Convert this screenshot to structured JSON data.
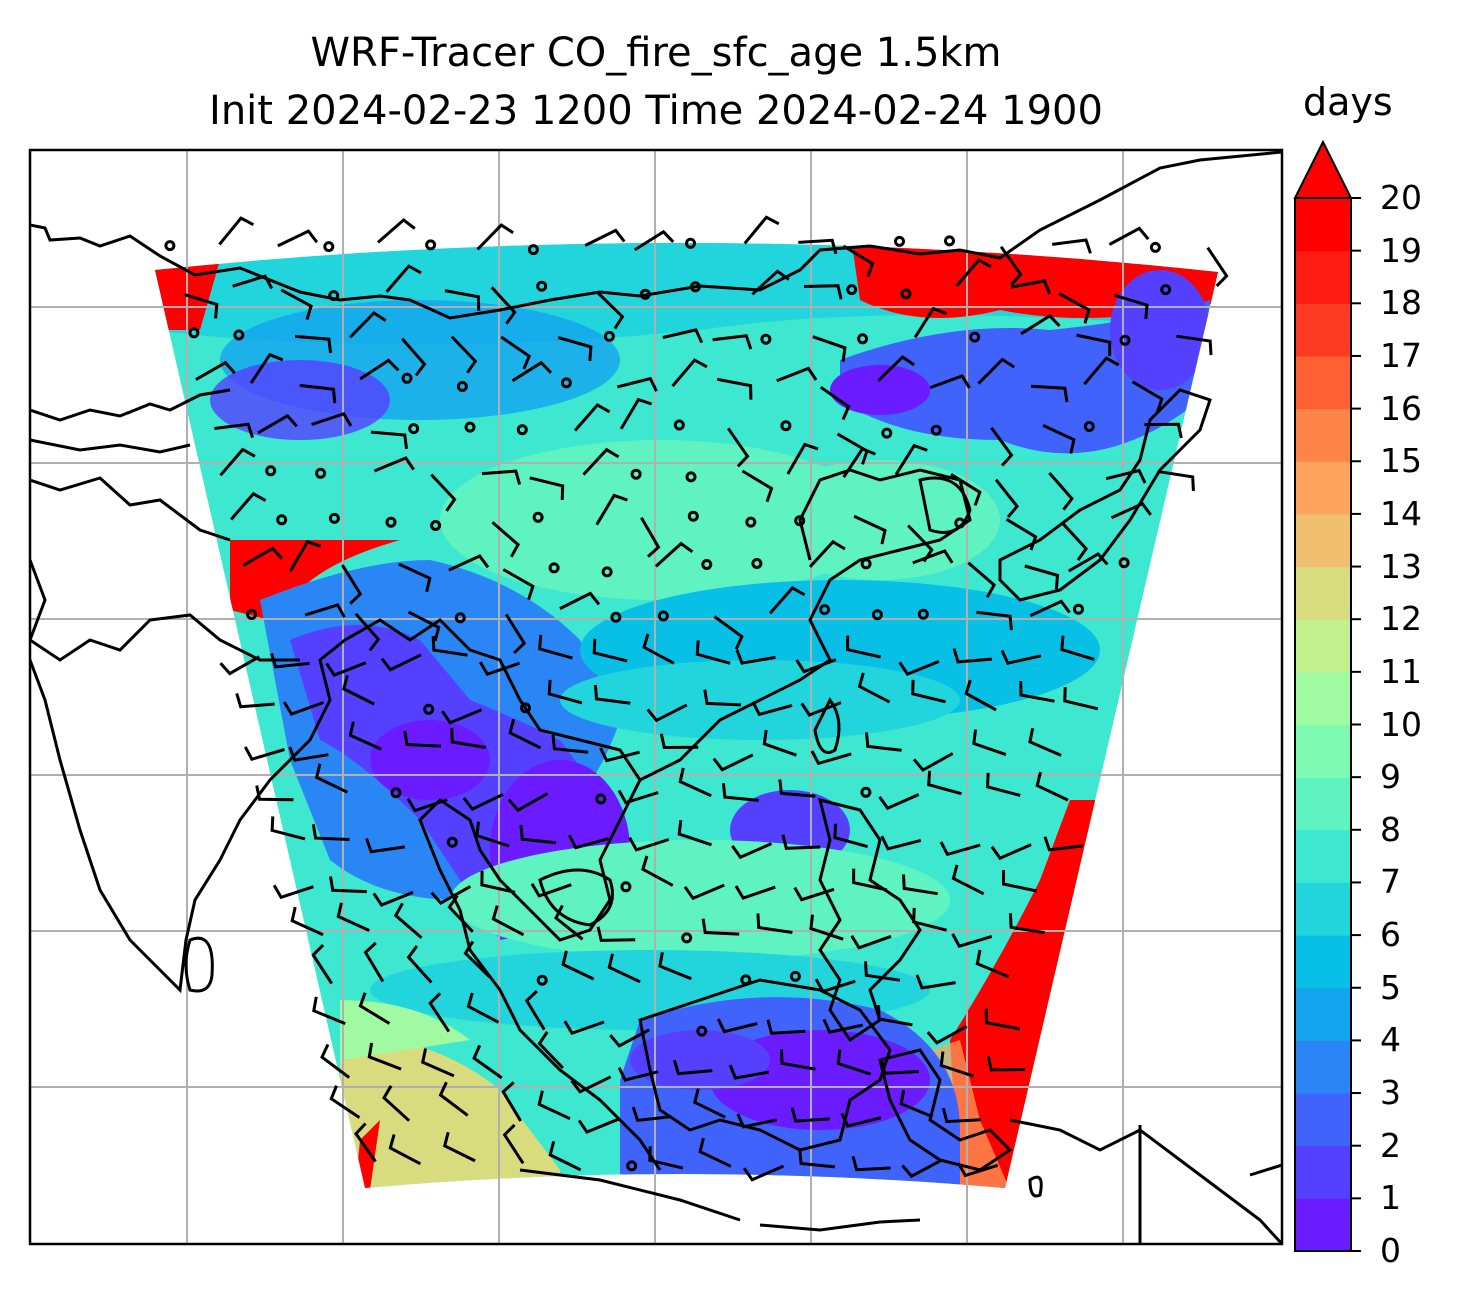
{
  "title_line1": "WRF-Tracer CO_fire_sfc_age 1.5km",
  "title_line2": "Init 2024-02-23 1200 Time 2024-02-24 1900",
  "colorbar": {
    "label": "days",
    "extend": "max",
    "ticks": [
      "0",
      "1",
      "2",
      "3",
      "4",
      "5",
      "6",
      "7",
      "8",
      "9",
      "10",
      "11",
      "12",
      "13",
      "14",
      "15",
      "16",
      "17",
      "18",
      "19",
      "20"
    ],
    "colors": [
      "#6a1bff",
      "#5540ff",
      "#3f63fb",
      "#2a86f5",
      "#14a4ee",
      "#08bfe6",
      "#22d5dc",
      "#3ee7cf",
      "#5ff3c1",
      "#7efab2",
      "#9ffaa1",
      "#c2f08c",
      "#d9dc7e",
      "#f0c070",
      "#fda55f",
      "#ff8447",
      "#ff6034",
      "#ff3a22",
      "#ff1a12",
      "#ff0000"
    ],
    "over_color": "#ff0000"
  },
  "map": {
    "grid": true,
    "feature": "coastlines, wind barbs"
  }
}
